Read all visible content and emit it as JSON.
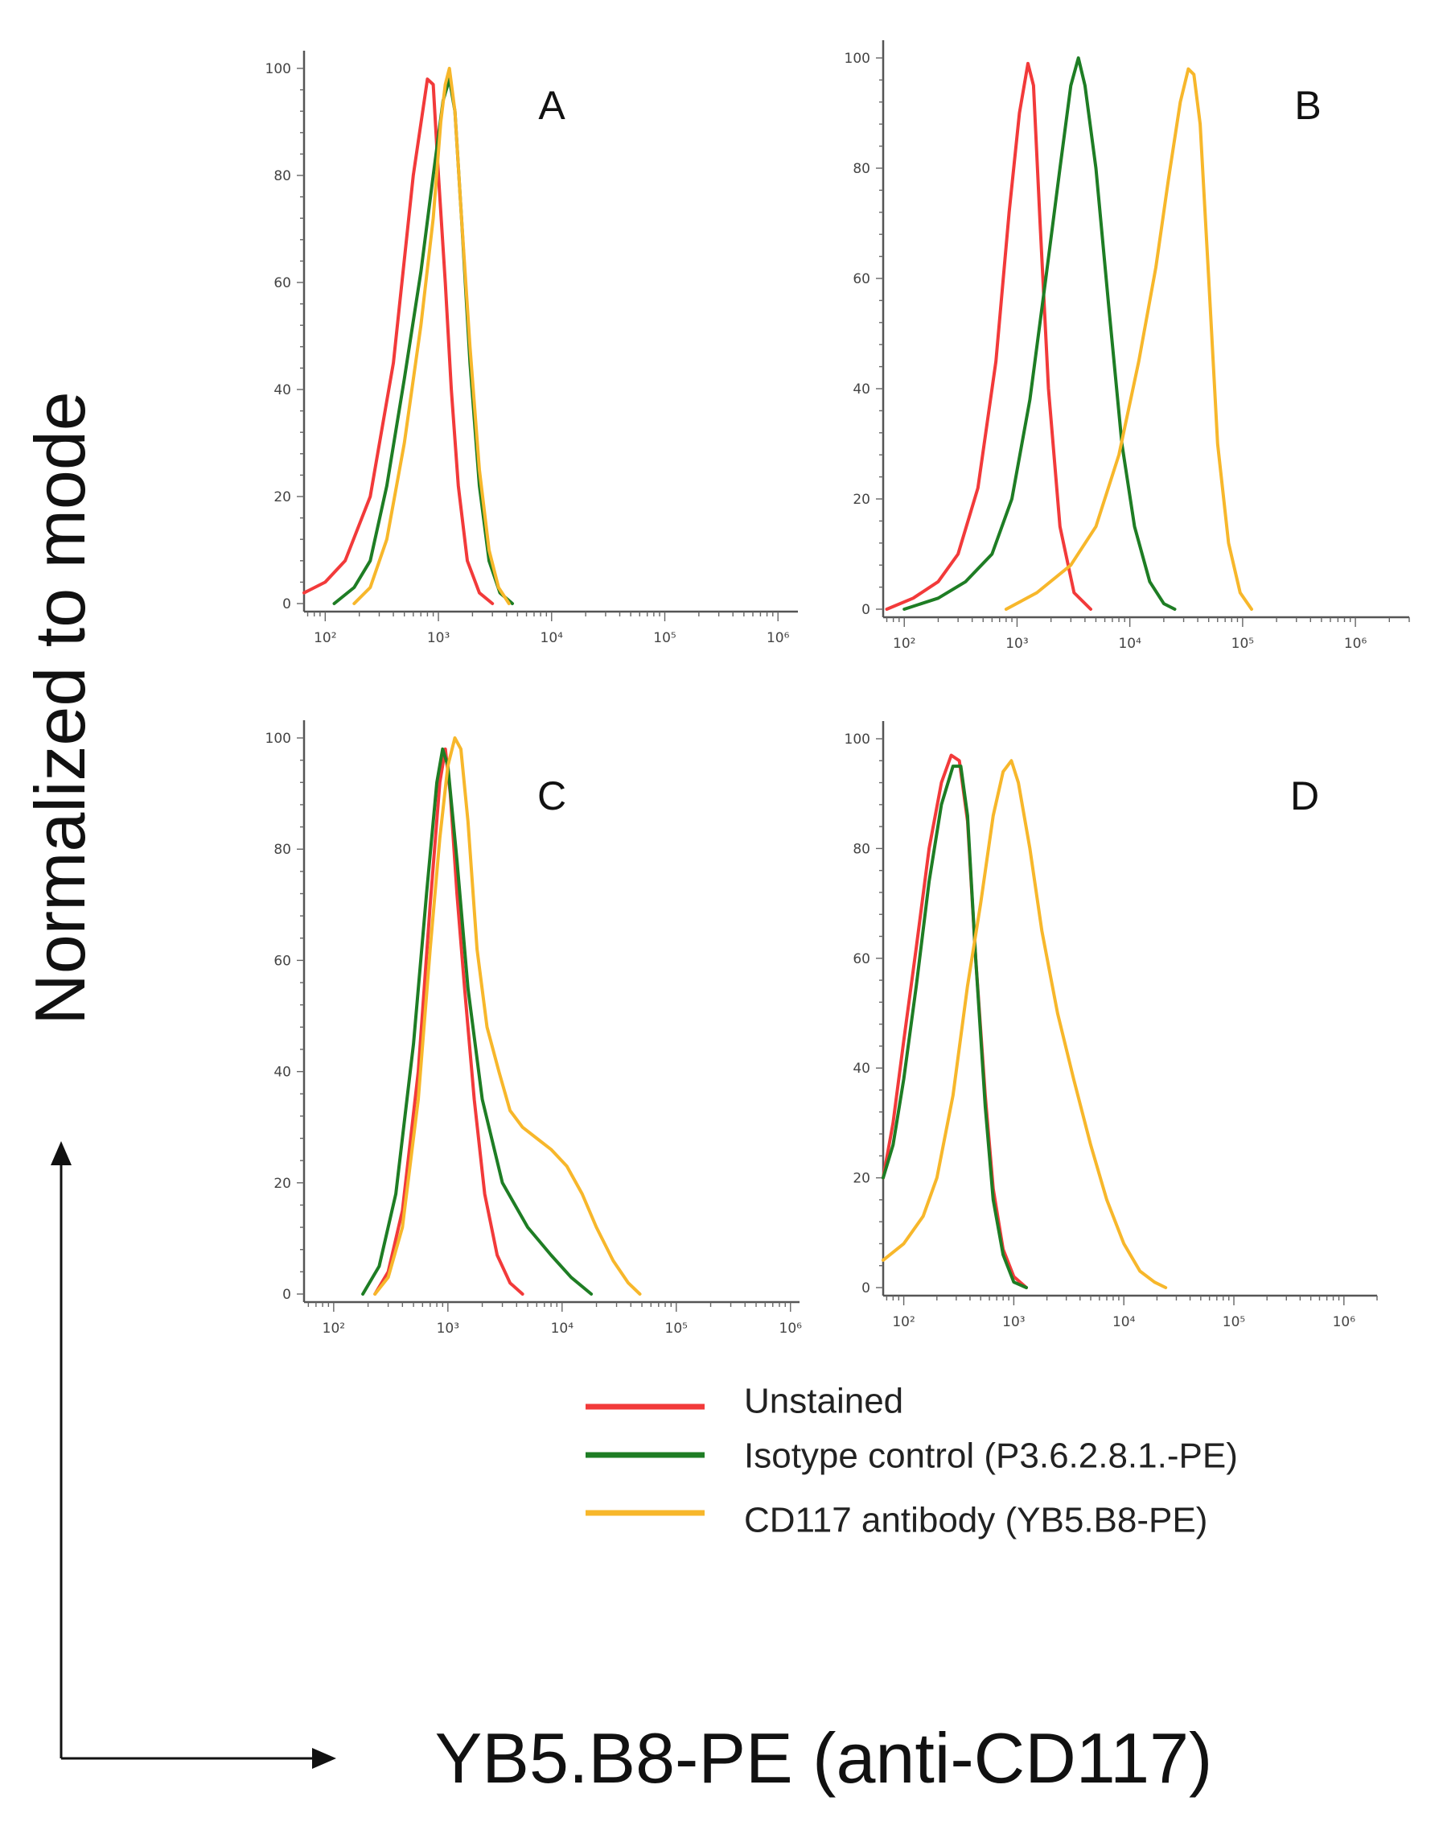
{
  "figure": {
    "ylabel": "Normalized to mode",
    "xlabel": "YB5.B8-PE (anti-CD117)"
  },
  "legend": [
    {
      "label": "Unstained",
      "color": "#f23a3a"
    },
    {
      "label": "Isotype control (P3.6.2.8.1.-PE)",
      "color": "#1e7d24"
    },
    {
      "label": "CD117 antibody (YB5.B8-PE)",
      "color": "#f7b72b"
    }
  ],
  "chart_data": [
    {
      "type": "line",
      "panel": "A",
      "xscale": "log",
      "xlim": [
        65,
        1500000
      ],
      "ylim": [
        0,
        100
      ],
      "yticks": [
        "0",
        "20",
        "40",
        "60",
        "80",
        "100"
      ],
      "xticks": [
        {
          "exp": 2,
          "label": "10²"
        },
        {
          "exp": 3,
          "label": "10³"
        },
        {
          "exp": 4,
          "label": "10⁴"
        },
        {
          "exp": 5,
          "label": "10⁵"
        },
        {
          "exp": 6,
          "label": "10⁶"
        }
      ],
      "series": [
        {
          "name": "Unstained",
          "color": "#f23a3a",
          "points": [
            [
              65,
              2
            ],
            [
              100,
              4
            ],
            [
              150,
              8
            ],
            [
              250,
              20
            ],
            [
              400,
              45
            ],
            [
              600,
              80
            ],
            [
              800,
              98
            ],
            [
              900,
              97
            ],
            [
              1000,
              80
            ],
            [
              1150,
              60
            ],
            [
              1300,
              40
            ],
            [
              1500,
              22
            ],
            [
              1800,
              8
            ],
            [
              2300,
              2
            ],
            [
              3000,
              0
            ]
          ]
        },
        {
          "name": "Isotype control (P3.6.2.8.1.-PE)",
          "color": "#1e7d24",
          "points": [
            [
              120,
              0
            ],
            [
              180,
              3
            ],
            [
              250,
              8
            ],
            [
              350,
              22
            ],
            [
              500,
              42
            ],
            [
              700,
              62
            ],
            [
              900,
              80
            ],
            [
              1100,
              94
            ],
            [
              1250,
              98
            ],
            [
              1400,
              92
            ],
            [
              1600,
              72
            ],
            [
              1900,
              45
            ],
            [
              2300,
              22
            ],
            [
              2800,
              8
            ],
            [
              3500,
              2
            ],
            [
              4500,
              0
            ]
          ]
        },
        {
          "name": "CD117 antibody (YB5.B8-PE)",
          "color": "#f7b72b",
          "points": [
            [
              180,
              0
            ],
            [
              250,
              3
            ],
            [
              350,
              12
            ],
            [
              500,
              30
            ],
            [
              700,
              52
            ],
            [
              900,
              72
            ],
            [
              1050,
              90
            ],
            [
              1150,
              97
            ],
            [
              1250,
              100
            ],
            [
              1400,
              92
            ],
            [
              1600,
              72
            ],
            [
              1900,
              48
            ],
            [
              2300,
              25
            ],
            [
              2800,
              10
            ],
            [
              3400,
              3
            ],
            [
              4200,
              0
            ]
          ]
        }
      ]
    },
    {
      "type": "line",
      "panel": "B",
      "xscale": "log",
      "xlim": [
        65,
        3000000
      ],
      "ylim": [
        0,
        100
      ],
      "yticks": [
        "0",
        "20",
        "40",
        "60",
        "80",
        "100"
      ],
      "xticks": [
        {
          "exp": 2,
          "label": "10²"
        },
        {
          "exp": 3,
          "label": "10³"
        },
        {
          "exp": 4,
          "label": "10⁴"
        },
        {
          "exp": 5,
          "label": "10⁵"
        },
        {
          "exp": 6,
          "label": "10⁶"
        }
      ],
      "series": [
        {
          "name": "Unstained",
          "color": "#f23a3a",
          "points": [
            [
              70,
              0
            ],
            [
              120,
              2
            ],
            [
              200,
              5
            ],
            [
              300,
              10
            ],
            [
              450,
              22
            ],
            [
              650,
              45
            ],
            [
              850,
              72
            ],
            [
              1050,
              90
            ],
            [
              1250,
              99
            ],
            [
              1400,
              95
            ],
            [
              1600,
              70
            ],
            [
              1900,
              40
            ],
            [
              2400,
              15
            ],
            [
              3200,
              3
            ],
            [
              4500,
              0
            ]
          ]
        },
        {
          "name": "Isotype control (P3.6.2.8.1.-PE)",
          "color": "#1e7d24",
          "points": [
            [
              100,
              0
            ],
            [
              200,
              2
            ],
            [
              350,
              5
            ],
            [
              600,
              10
            ],
            [
              900,
              20
            ],
            [
              1300,
              38
            ],
            [
              1800,
              60
            ],
            [
              2400,
              80
            ],
            [
              3000,
              95
            ],
            [
              3500,
              100
            ],
            [
              4000,
              95
            ],
            [
              5000,
              80
            ],
            [
              6500,
              55
            ],
            [
              8500,
              30
            ],
            [
              11000,
              15
            ],
            [
              15000,
              5
            ],
            [
              20000,
              1
            ],
            [
              25000,
              0
            ]
          ]
        },
        {
          "name": "CD117 antibody (YB5.B8-PE)",
          "color": "#f7b72b",
          "points": [
            [
              800,
              0
            ],
            [
              1500,
              3
            ],
            [
              3000,
              8
            ],
            [
              5000,
              15
            ],
            [
              8000,
              28
            ],
            [
              12000,
              45
            ],
            [
              17000,
              62
            ],
            [
              22000,
              78
            ],
            [
              28000,
              92
            ],
            [
              33000,
              98
            ],
            [
              37000,
              97
            ],
            [
              42000,
              88
            ],
            [
              50000,
              60
            ],
            [
              60000,
              30
            ],
            [
              75000,
              12
            ],
            [
              95000,
              3
            ],
            [
              120000,
              0
            ]
          ]
        }
      ]
    },
    {
      "type": "line",
      "panel": "C",
      "xscale": "log",
      "xlim": [
        55,
        1200000
      ],
      "ylim": [
        0,
        100
      ],
      "yticks": [
        "0",
        "20",
        "40",
        "60",
        "80",
        "100"
      ],
      "xticks": [
        {
          "exp": 2,
          "label": "10²"
        },
        {
          "exp": 3,
          "label": "10³"
        },
        {
          "exp": 4,
          "label": "10⁴"
        },
        {
          "exp": 5,
          "label": "10⁵"
        },
        {
          "exp": 6,
          "label": "10⁶"
        }
      ],
      "series": [
        {
          "name": "Unstained",
          "color": "#f23a3a",
          "points": [
            [
              230,
              0
            ],
            [
              300,
              4
            ],
            [
              400,
              15
            ],
            [
              550,
              40
            ],
            [
              700,
              70
            ],
            [
              850,
              92
            ],
            [
              950,
              98
            ],
            [
              1050,
              90
            ],
            [
              1200,
              72
            ],
            [
              1400,
              55
            ],
            [
              1700,
              35
            ],
            [
              2100,
              18
            ],
            [
              2700,
              7
            ],
            [
              3500,
              2
            ],
            [
              4500,
              0
            ]
          ]
        },
        {
          "name": "Isotype control (P3.6.2.8.1.-PE)",
          "color": "#1e7d24",
          "points": [
            [
              180,
              0
            ],
            [
              250,
              5
            ],
            [
              350,
              18
            ],
            [
              500,
              45
            ],
            [
              650,
              72
            ],
            [
              800,
              92
            ],
            [
              900,
              98
            ],
            [
              1000,
              95
            ],
            [
              1200,
              78
            ],
            [
              1500,
              55
            ],
            [
              2000,
              35
            ],
            [
              3000,
              20
            ],
            [
              5000,
              12
            ],
            [
              8000,
              7
            ],
            [
              12000,
              3
            ],
            [
              18000,
              0
            ]
          ]
        },
        {
          "name": "CD117 antibody (YB5.B8-PE)",
          "color": "#f7b72b",
          "points": [
            [
              230,
              0
            ],
            [
              300,
              3
            ],
            [
              400,
              12
            ],
            [
              550,
              35
            ],
            [
              700,
              62
            ],
            [
              850,
              82
            ],
            [
              1000,
              95
            ],
            [
              1150,
              100
            ],
            [
              1300,
              98
            ],
            [
              1500,
              85
            ],
            [
              1800,
              62
            ],
            [
              2200,
              48
            ],
            [
              2800,
              40
            ],
            [
              3500,
              33
            ],
            [
              4500,
              30
            ],
            [
              6000,
              28
            ],
            [
              8000,
              26
            ],
            [
              11000,
              23
            ],
            [
              15000,
              18
            ],
            [
              20000,
              12
            ],
            [
              28000,
              6
            ],
            [
              38000,
              2
            ],
            [
              48000,
              0
            ]
          ]
        }
      ]
    },
    {
      "type": "line",
      "panel": "D",
      "xscale": "log",
      "xlim": [
        65,
        2000000
      ],
      "ylim": [
        0,
        100
      ],
      "yticks": [
        "0",
        "20",
        "40",
        "60",
        "80",
        "100"
      ],
      "xticks": [
        {
          "exp": 2,
          "label": "10²"
        },
        {
          "exp": 3,
          "label": "10³"
        },
        {
          "exp": 4,
          "label": "10⁴"
        },
        {
          "exp": 5,
          "label": "10⁵"
        },
        {
          "exp": 6,
          "label": "10⁶"
        }
      ],
      "series": [
        {
          "name": "Unstained",
          "color": "#f23a3a",
          "points": [
            [
              65,
              20
            ],
            [
              80,
              30
            ],
            [
              100,
              45
            ],
            [
              130,
              62
            ],
            [
              170,
              80
            ],
            [
              220,
              92
            ],
            [
              270,
              97
            ],
            [
              320,
              96
            ],
            [
              380,
              85
            ],
            [
              450,
              60
            ],
            [
              550,
              35
            ],
            [
              650,
              18
            ],
            [
              800,
              7
            ],
            [
              1000,
              2
            ],
            [
              1300,
              0
            ]
          ]
        },
        {
          "name": "Isotype control (P3.6.2.8.1.-PE)",
          "color": "#1e7d24",
          "points": [
            [
              65,
              20
            ],
            [
              80,
              26
            ],
            [
              100,
              38
            ],
            [
              130,
              55
            ],
            [
              170,
              74
            ],
            [
              220,
              88
            ],
            [
              280,
              95
            ],
            [
              330,
              95
            ],
            [
              380,
              86
            ],
            [
              450,
              60
            ],
            [
              550,
              33
            ],
            [
              650,
              16
            ],
            [
              800,
              6
            ],
            [
              1000,
              1
            ],
            [
              1300,
              0
            ]
          ]
        },
        {
          "name": "CD117 antibody (YB5.B8-PE)",
          "color": "#f7b72b",
          "points": [
            [
              65,
              5
            ],
            [
              100,
              8
            ],
            [
              150,
              13
            ],
            [
              200,
              20
            ],
            [
              280,
              35
            ],
            [
              380,
              55
            ],
            [
              500,
              70
            ],
            [
              650,
              86
            ],
            [
              800,
              94
            ],
            [
              950,
              96
            ],
            [
              1100,
              92
            ],
            [
              1400,
              80
            ],
            [
              1800,
              65
            ],
            [
              2500,
              50
            ],
            [
              3500,
              38
            ],
            [
              5000,
              26
            ],
            [
              7000,
              16
            ],
            [
              10000,
              8
            ],
            [
              14000,
              3
            ],
            [
              19000,
              1
            ],
            [
              24000,
              0
            ]
          ]
        }
      ]
    }
  ]
}
